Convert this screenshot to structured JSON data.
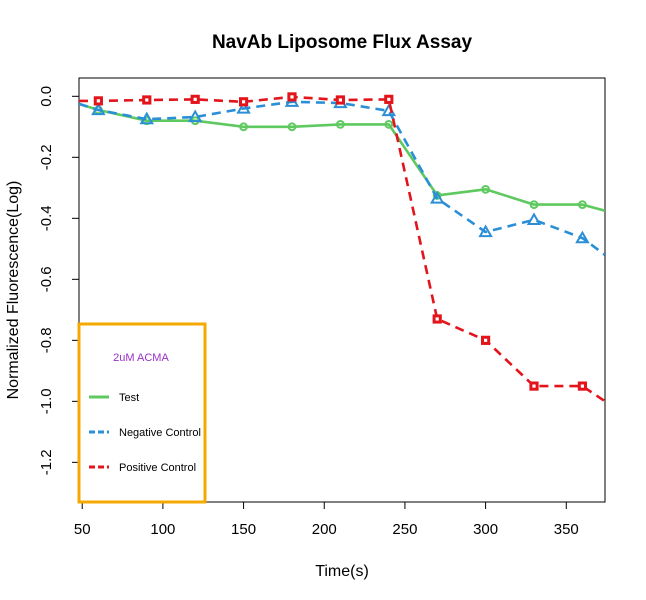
{
  "chart_data": {
    "type": "line",
    "title": "NavAb Liposome Flux Assay",
    "xlabel": "Time(s)",
    "ylabel": "Normalized Fluorescence(Log)",
    "xlim": [
      48,
      374
    ],
    "ylim": [
      -1.33,
      0.06
    ],
    "x_ticks": [
      50,
      100,
      150,
      200,
      250,
      300,
      350
    ],
    "x_tick_labels": [
      "50",
      "100",
      "150",
      "200",
      "250",
      "300",
      "350"
    ],
    "y_ticks": [
      0.0,
      -0.2,
      -0.4,
      -0.6,
      -0.8,
      -1.0,
      -1.2
    ],
    "y_tick_labels": [
      "0.0",
      "-0.2",
      "-0.4",
      "-0.6",
      "-0.8",
      "-1.0",
      "-1.2"
    ],
    "grid": false,
    "legend": {
      "placement": "bottom-left",
      "title": "2uM ACMA",
      "title_color": "#9b30c8",
      "border_color": "#f5a800"
    },
    "series": [
      {
        "name": "Test",
        "color": "#5ec95e",
        "line_style": "solid",
        "marker": "circle",
        "x": [
          48,
          60,
          90,
          120,
          150,
          180,
          210,
          240,
          270,
          300,
          330,
          360,
          374
        ],
        "y": [
          -0.025,
          -0.045,
          -0.08,
          -0.08,
          -0.1,
          -0.1,
          -0.092,
          -0.092,
          -0.325,
          -0.305,
          -0.355,
          -0.355,
          -0.375
        ],
        "marker_x": [
          60,
          90,
          120,
          150,
          180,
          210,
          240,
          270,
          300,
          330,
          360
        ]
      },
      {
        "name": "Negative Control",
        "color": "#2a8fd6",
        "line_style": "dashed",
        "marker": "triangle",
        "x": [
          48,
          60,
          90,
          120,
          150,
          180,
          210,
          240,
          270,
          300,
          330,
          360,
          374
        ],
        "y": [
          -0.025,
          -0.045,
          -0.075,
          -0.068,
          -0.04,
          -0.018,
          -0.022,
          -0.048,
          -0.335,
          -0.445,
          -0.405,
          -0.465,
          -0.52
        ],
        "marker_x": [
          60,
          90,
          120,
          150,
          180,
          210,
          240,
          270,
          300,
          330,
          360
        ]
      },
      {
        "name": "Positive Control",
        "color": "#e3141b",
        "line_style": "dashed",
        "marker": "square",
        "x": [
          48,
          60,
          90,
          120,
          150,
          180,
          210,
          240,
          270,
          300,
          330,
          360,
          374
        ],
        "y": [
          -0.015,
          -0.015,
          -0.012,
          -0.01,
          -0.018,
          -0.002,
          -0.012,
          -0.01,
          -0.73,
          -0.8,
          -0.95,
          -0.95,
          -1.0
        ],
        "marker_x": [
          60,
          90,
          120,
          150,
          180,
          210,
          240,
          270,
          300,
          330,
          360
        ]
      }
    ]
  }
}
